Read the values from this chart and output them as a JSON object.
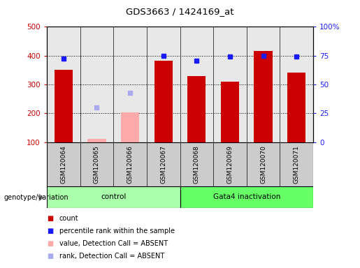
{
  "title": "GDS3663 / 1424169_at",
  "samples": [
    "GSM120064",
    "GSM120065",
    "GSM120066",
    "GSM120067",
    "GSM120068",
    "GSM120069",
    "GSM120070",
    "GSM120071"
  ],
  "count_values": [
    350,
    null,
    null,
    383,
    328,
    310,
    415,
    342
  ],
  "count_absent_values": [
    null,
    110,
    202,
    null,
    null,
    null,
    null,
    null
  ],
  "percentile_values": [
    390,
    null,
    null,
    400,
    383,
    398,
    400,
    396
  ],
  "percentile_absent_values": [
    null,
    220,
    270,
    null,
    null,
    null,
    null,
    null
  ],
  "ylim_left": [
    100,
    500
  ],
  "yticks_left": [
    100,
    200,
    300,
    400,
    500
  ],
  "yticks_right": [
    0,
    25,
    50,
    75,
    100
  ],
  "ytick_labels_right": [
    "0",
    "25",
    "50",
    "75",
    "100%"
  ],
  "bar_color_red": "#cc0000",
  "bar_color_pink": "#ffaaaa",
  "dot_color_blue": "#1a1aff",
  "dot_color_lightblue": "#aaaaee",
  "group_color_control": "#aaffaa",
  "group_color_gata4": "#66ff66",
  "sample_box_color": "#cccccc",
  "bar_width": 0.55,
  "bar_base": 100,
  "grid_lines": [
    200,
    300,
    400
  ],
  "control_samples": 4,
  "gata4_samples": 4
}
